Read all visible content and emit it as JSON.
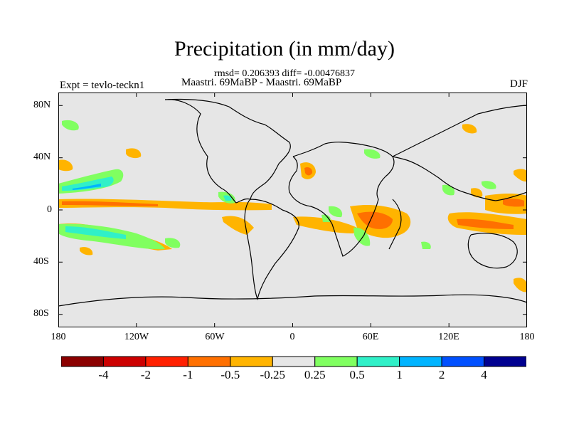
{
  "title": "Precipitation (in mm/day)",
  "stats": "rmsd= 0.206393 diff= -0.00476837",
  "comparison": "Maastri.  69MaBP - Maastri.  69MaBP",
  "experiment": "Expt = tevlo-teckn1",
  "season": "DJF",
  "y_ticks": [
    "80N",
    "40N",
    "0",
    "40S",
    "80S"
  ],
  "x_ticks": [
    "180",
    "120W",
    "60W",
    "0",
    "60E",
    "120E",
    "180"
  ],
  "colorbar": {
    "colors": [
      "#8b0000",
      "#cc0000",
      "#ff2000",
      "#ff7000",
      "#ffb400",
      "#e6e6e6",
      "#80ff60",
      "#30f0c8",
      "#00b4ff",
      "#0050ff",
      "#000090"
    ],
    "labels": [
      "-4",
      "-2",
      "-1",
      "-0.5",
      "-0.25",
      "0.25",
      "0.5",
      "1",
      "2",
      "4"
    ]
  }
}
